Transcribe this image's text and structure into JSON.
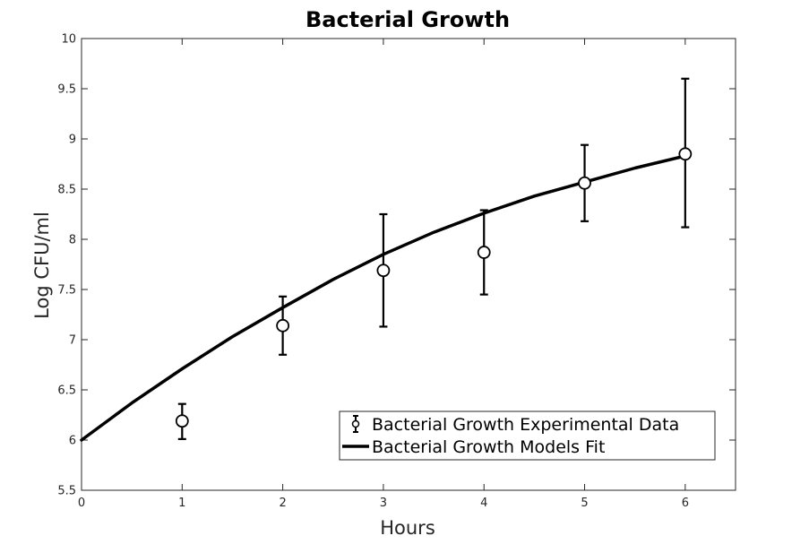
{
  "chart_data": {
    "type": "line",
    "title": "Bacterial Growth",
    "xlabel": "Hours",
    "ylabel": "Log CFU/ml",
    "xlim": [
      0,
      6.5
    ],
    "ylim": [
      5.5,
      10
    ],
    "xticks": [
      "0",
      "1",
      "2",
      "3",
      "4",
      "5",
      "6"
    ],
    "yticks": [
      "5.5",
      "6",
      "6.5",
      "7",
      "7.5",
      "8",
      "8.5",
      "9",
      "9.5",
      "10"
    ],
    "grid": false,
    "legend_position": "bottom-right",
    "series": [
      {
        "name": "Bacterial Growth Experimental Data",
        "kind": "errorbar",
        "x": [
          1,
          2,
          3,
          4,
          5,
          6
        ],
        "y": [
          6.19,
          7.14,
          7.69,
          7.87,
          8.56,
          8.85
        ],
        "err_low": [
          6.01,
          6.85,
          7.13,
          7.45,
          8.18,
          8.12
        ],
        "err_high": [
          6.36,
          7.43,
          8.25,
          8.29,
          8.94,
          9.6
        ]
      },
      {
        "name": "Bacterial Growth Models Fit",
        "kind": "line",
        "x": [
          0,
          0.5,
          1,
          1.5,
          2,
          2.5,
          3,
          3.5,
          4,
          4.5,
          5,
          5.5,
          6
        ],
        "y": [
          6.0,
          6.37,
          6.71,
          7.03,
          7.32,
          7.6,
          7.85,
          8.07,
          8.26,
          8.43,
          8.57,
          8.71,
          8.83
        ]
      }
    ]
  }
}
